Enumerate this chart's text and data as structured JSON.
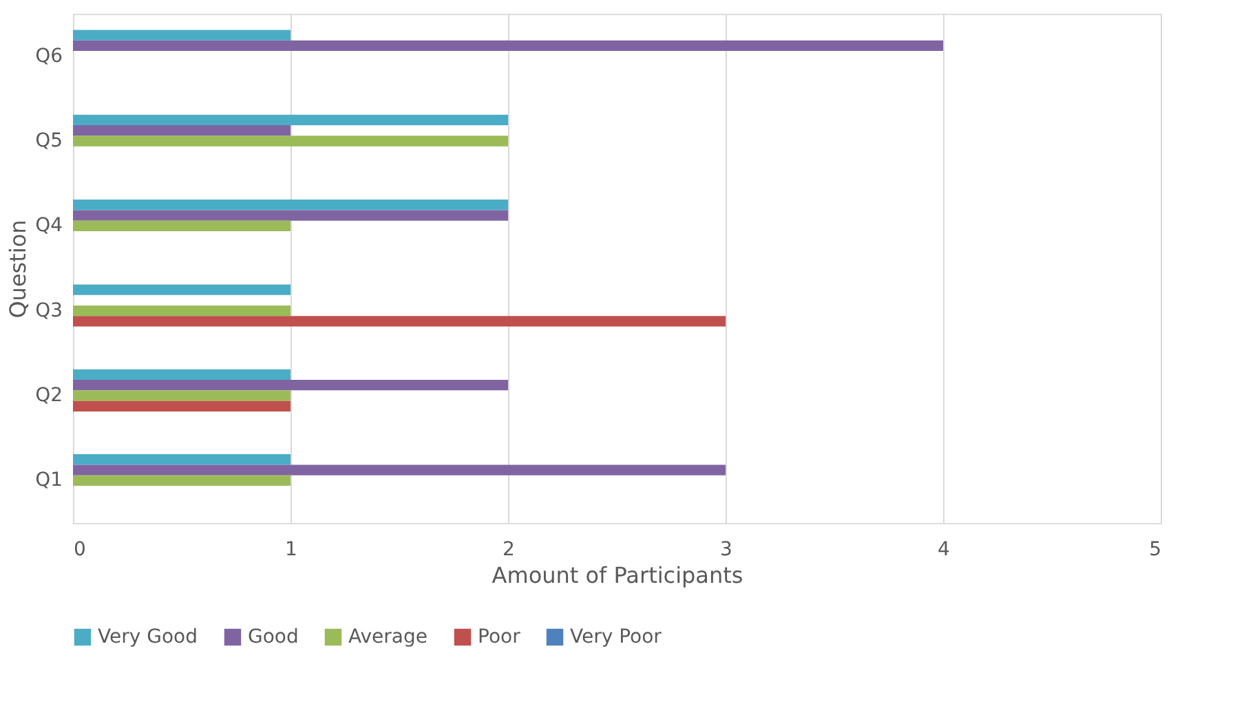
{
  "chart_data": {
    "type": "bar",
    "orientation": "horizontal",
    "xlabel": "Amount of Participants",
    "ylabel": "Question",
    "categories": [
      "Q6",
      "Q5",
      "Q4",
      "Q3",
      "Q2",
      "Q1"
    ],
    "series": [
      {
        "name": "Very Good",
        "color": "#4bacc6",
        "values": [
          1,
          2,
          2,
          1,
          1,
          1
        ]
      },
      {
        "name": "Good",
        "color": "#8064a2",
        "values": [
          4,
          1,
          2,
          0,
          2,
          3
        ]
      },
      {
        "name": "Average",
        "color": "#9bbb59",
        "values": [
          0,
          2,
          1,
          1,
          1,
          1
        ]
      },
      {
        "name": "Poor",
        "color": "#c0504d",
        "values": [
          0,
          0,
          0,
          3,
          1,
          0
        ]
      },
      {
        "name": "Very Poor",
        "color": "#4f81bd",
        "values": [
          0,
          0,
          0,
          0,
          0,
          0
        ]
      }
    ],
    "xlim": [
      0,
      5
    ],
    "xticks": [
      0,
      1,
      2,
      3,
      4,
      5
    ],
    "grid": "x",
    "legend": "bottom"
  }
}
